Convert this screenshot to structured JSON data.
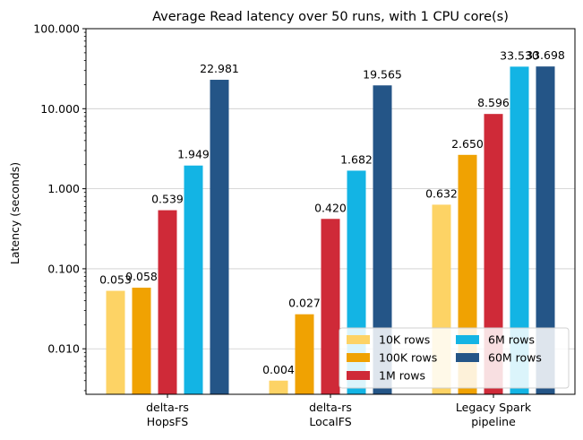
{
  "chart_data": {
    "type": "bar",
    "title": "Average Read latency over 50 runs, with 1 CPU core(s)",
    "xlabel": "",
    "ylabel": "Latency (seconds)",
    "yscale": "log",
    "ylim": [
      0.0027,
      100
    ],
    "yticks": [
      {
        "value": 0.01,
        "label": "0.010"
      },
      {
        "value": 0.1,
        "label": "0.100"
      },
      {
        "value": 1,
        "label": "1.000"
      },
      {
        "value": 10,
        "label": "10.000"
      },
      {
        "value": 100,
        "label": "100.000"
      }
    ],
    "grid": "y",
    "legend_position": "lower-right",
    "categories": [
      [
        "delta-rs",
        "HopsFS"
      ],
      [
        "delta-rs",
        "LocalFS"
      ],
      [
        "Legacy Spark",
        "pipeline"
      ]
    ],
    "series": [
      {
        "name": "10K rows",
        "color": "#FDD365",
        "values": [
          0.053,
          0.004,
          0.632
        ],
        "labels": [
          "0.053",
          "0.004",
          "0.632"
        ]
      },
      {
        "name": "100K rows",
        "color": "#F0A202",
        "values": [
          0.058,
          0.027,
          2.65
        ],
        "labels": [
          "0.058",
          "0.027",
          "2.650"
        ]
      },
      {
        "name": "1M rows",
        "color": "#CF2A38",
        "values": [
          0.539,
          0.42,
          8.596
        ],
        "labels": [
          "0.539",
          "0.420",
          "8.596"
        ]
      },
      {
        "name": "6M rows",
        "color": "#13B4E4",
        "values": [
          1.949,
          1.682,
          33.53
        ],
        "labels": [
          "1.949",
          "1.682",
          "33.530"
        ]
      },
      {
        "name": "60M rows",
        "color": "#245587",
        "values": [
          22.981,
          19.565,
          33.698
        ],
        "labels": [
          "22.981",
          "19.565",
          "33.698"
        ]
      }
    ]
  }
}
